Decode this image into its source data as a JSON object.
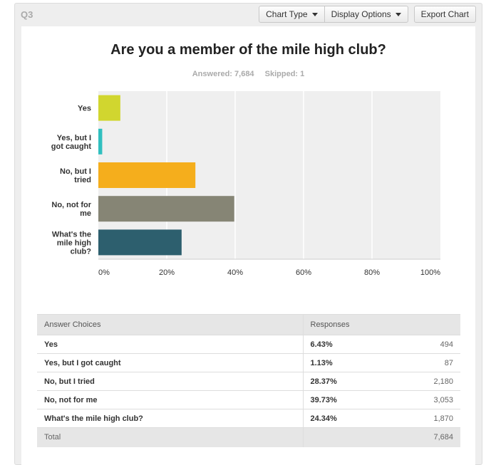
{
  "question": {
    "label": "Q3",
    "title": "Are you a member of the mile high club?",
    "answered": "Answered: 7,684",
    "skipped": "Skipped: 1"
  },
  "toolbar": {
    "chart_type": "Chart Type",
    "display_options": "Display Options",
    "export_chart": "Export Chart"
  },
  "chart_data": {
    "type": "bar",
    "orientation": "horizontal",
    "categories": [
      [
        "Yes"
      ],
      [
        "Yes, but I",
        "got caught"
      ],
      [
        "No, but I",
        "tried"
      ],
      [
        "No, not for",
        "me"
      ],
      [
        "What's the",
        "mile high",
        "club?"
      ]
    ],
    "values": [
      6.43,
      1.13,
      28.37,
      39.73,
      24.34
    ],
    "colors": [
      "#d1d62f",
      "#30bfbf",
      "#f5ae1c",
      "#868575",
      "#2d5f6e"
    ],
    "xlim": [
      0,
      100
    ],
    "xticks": [
      "0%",
      "20%",
      "40%",
      "60%",
      "80%",
      "100%"
    ],
    "grid": true
  },
  "table": {
    "headers": [
      "Answer Choices",
      "Responses"
    ],
    "rows": [
      {
        "choice": "Yes",
        "pct": "6.43%",
        "count": "494"
      },
      {
        "choice": "Yes, but I got caught",
        "pct": "1.13%",
        "count": "87"
      },
      {
        "choice": "No, but I tried",
        "pct": "28.37%",
        "count": "2,180"
      },
      {
        "choice": "No, not for me",
        "pct": "39.73%",
        "count": "3,053"
      },
      {
        "choice": "What's the mile high club?",
        "pct": "24.34%",
        "count": "1,870"
      }
    ],
    "total_label": "Total",
    "total_count": "7,684"
  }
}
